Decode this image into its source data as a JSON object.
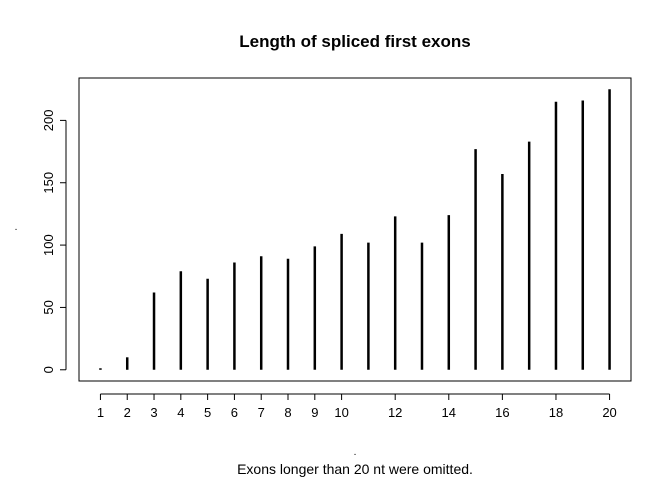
{
  "chart_data": {
    "type": "bar",
    "style": "histogram-spikes",
    "title": "Length of spliced first exons",
    "xlabel": ".",
    "ylabel": ".",
    "subtitle": "Exons longer than 20 nt were omitted.",
    "x": [
      1,
      2,
      3,
      4,
      5,
      6,
      7,
      8,
      9,
      10,
      11,
      12,
      13,
      14,
      15,
      16,
      17,
      18,
      19,
      20
    ],
    "values": [
      1,
      10,
      62,
      79,
      73,
      86,
      91,
      89,
      99,
      109,
      102,
      123,
      102,
      124,
      177,
      157,
      183,
      215,
      216,
      225
    ],
    "x_ticks": [
      "1",
      "2",
      "3",
      "4",
      "5",
      "6",
      "7",
      "8",
      "9",
      "10",
      "12",
      "14",
      "16",
      "18",
      "20"
    ],
    "y_ticks": [
      "0",
      "50",
      "100",
      "150",
      "200"
    ],
    "xlim": [
      0.2,
      20.8
    ],
    "ylim": [
      -9,
      234
    ],
    "grid": false,
    "legend": "none",
    "color": "#000000"
  }
}
